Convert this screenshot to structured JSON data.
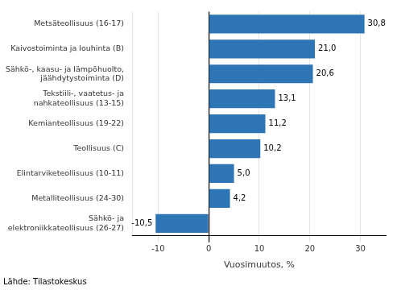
{
  "chart_data": {
    "type": "bar",
    "orientation": "horizontal",
    "categories": [
      "Metsäteollisuus (16-17)",
      "Kaivostoiminta ja louhinta (B)",
      "Sähkö-, kaasu- ja lämpöhuolto,\njäähdytystoiminta (D)",
      "Tekstiili-, vaatetus- ja\nnahkateollisuus (13-15)",
      "Kemianteollisuus (19-22)",
      "Teollisuus (C)",
      "Elintarviketeollisuus (10-11)",
      "Metalliteollisuus (24-30)",
      "Sähkö- ja\nelektroniikkateollisuus (26-27)"
    ],
    "values": [
      30.8,
      21.0,
      20.6,
      13.1,
      11.2,
      10.2,
      5.0,
      4.2,
      -10.5
    ],
    "value_labels": [
      "30,8",
      "21,0",
      "20,6",
      "13,1",
      "11,2",
      "10,2",
      "5,0",
      "4,2",
      "-10,5"
    ],
    "data_labels": true,
    "color": "#2e75b6",
    "xlabel": "Vuosimuutos, %",
    "xlim": [
      -15,
      35
    ],
    "xticks": [
      -10,
      0,
      10,
      20,
      30
    ],
    "grid": true,
    "annotations": [
      "Lähde: Tilastokeskus"
    ]
  }
}
